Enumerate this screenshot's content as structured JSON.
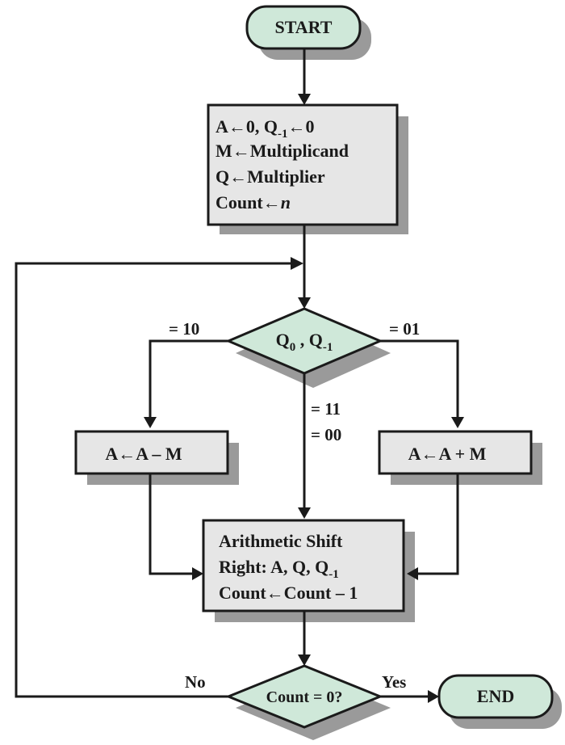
{
  "start": "START",
  "end": "END",
  "init": {
    "l1_a": "A",
    "l1_arrow1": "←",
    "l1_b": "0, Q",
    "l1_sub": "-1",
    "l1_arrow2": "←",
    "l1_c": "0",
    "l2": "M←Multiplicand",
    "l3": "Q←Multiplier",
    "l4_a": "Count←",
    "l4_n": "n"
  },
  "decision1": {
    "q": "Q",
    "sub0": "0",
    "sep": " , Q",
    "sub1": "-1"
  },
  "branch_labels": {
    "left": "= 10",
    "right": "= 01",
    "mid1": "= 11",
    "mid2": "= 00"
  },
  "sub_box": "A←A – M",
  "add_box": "A←A + M",
  "shift": {
    "l1": "Arithmetic Shift",
    "l2_a": "Right: A, Q, Q",
    "l2_sub": "-1",
    "l3": "Count←Count – 1"
  },
  "decision2": "Count = 0?",
  "no_label": "No",
  "yes_label": "Yes"
}
